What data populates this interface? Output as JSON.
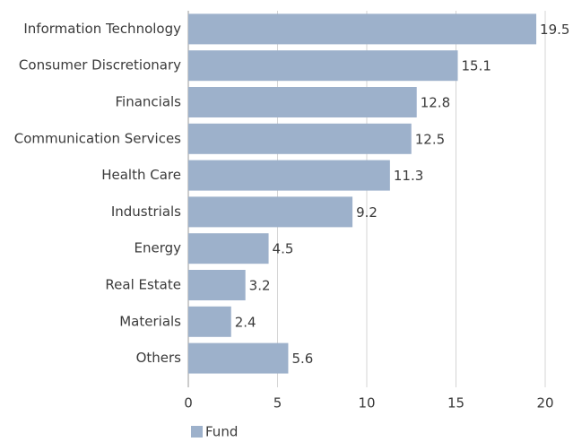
{
  "chart_data": {
    "type": "hbar",
    "categories": [
      "Information Technology",
      "Consumer Discretionary",
      "Financials",
      "Communication Services",
      "Health Care",
      "Industrials",
      "Energy",
      "Real Estate",
      "Materials",
      "Others"
    ],
    "series": [
      {
        "name": "Fund",
        "color": "#9db1cb",
        "values": [
          19.5,
          15.1,
          12.8,
          12.5,
          11.3,
          9.2,
          4.5,
          3.2,
          2.4,
          5.6
        ]
      }
    ],
    "xlim": [
      0,
      20
    ],
    "xticks": [
      0,
      5,
      10,
      15,
      20
    ],
    "grid": true,
    "legend": "bottom-left"
  }
}
